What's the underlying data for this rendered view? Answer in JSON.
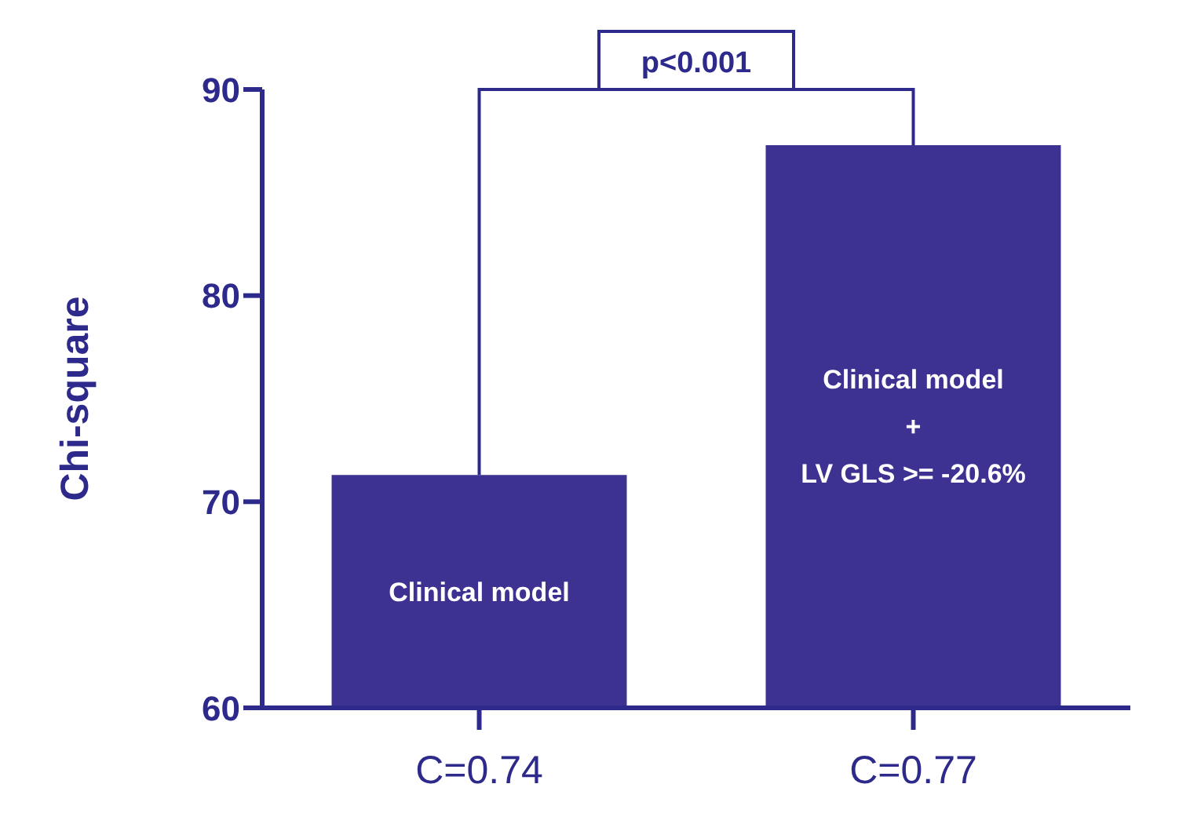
{
  "chart_data": {
    "type": "bar",
    "ylabel": "Chi-square",
    "categories": [
      "C=0.74",
      "C=0.77"
    ],
    "values": [
      71.3,
      87.3
    ],
    "color": "#3d3291",
    "ylim": [
      60,
      90
    ],
    "yticks": [
      60,
      70,
      80,
      90
    ],
    "grid": false,
    "legend": false,
    "annotations": [
      "p<0.001",
      "Clinical model",
      "Clinical model\n+\nLV GLS >= -20.6%"
    ]
  }
}
